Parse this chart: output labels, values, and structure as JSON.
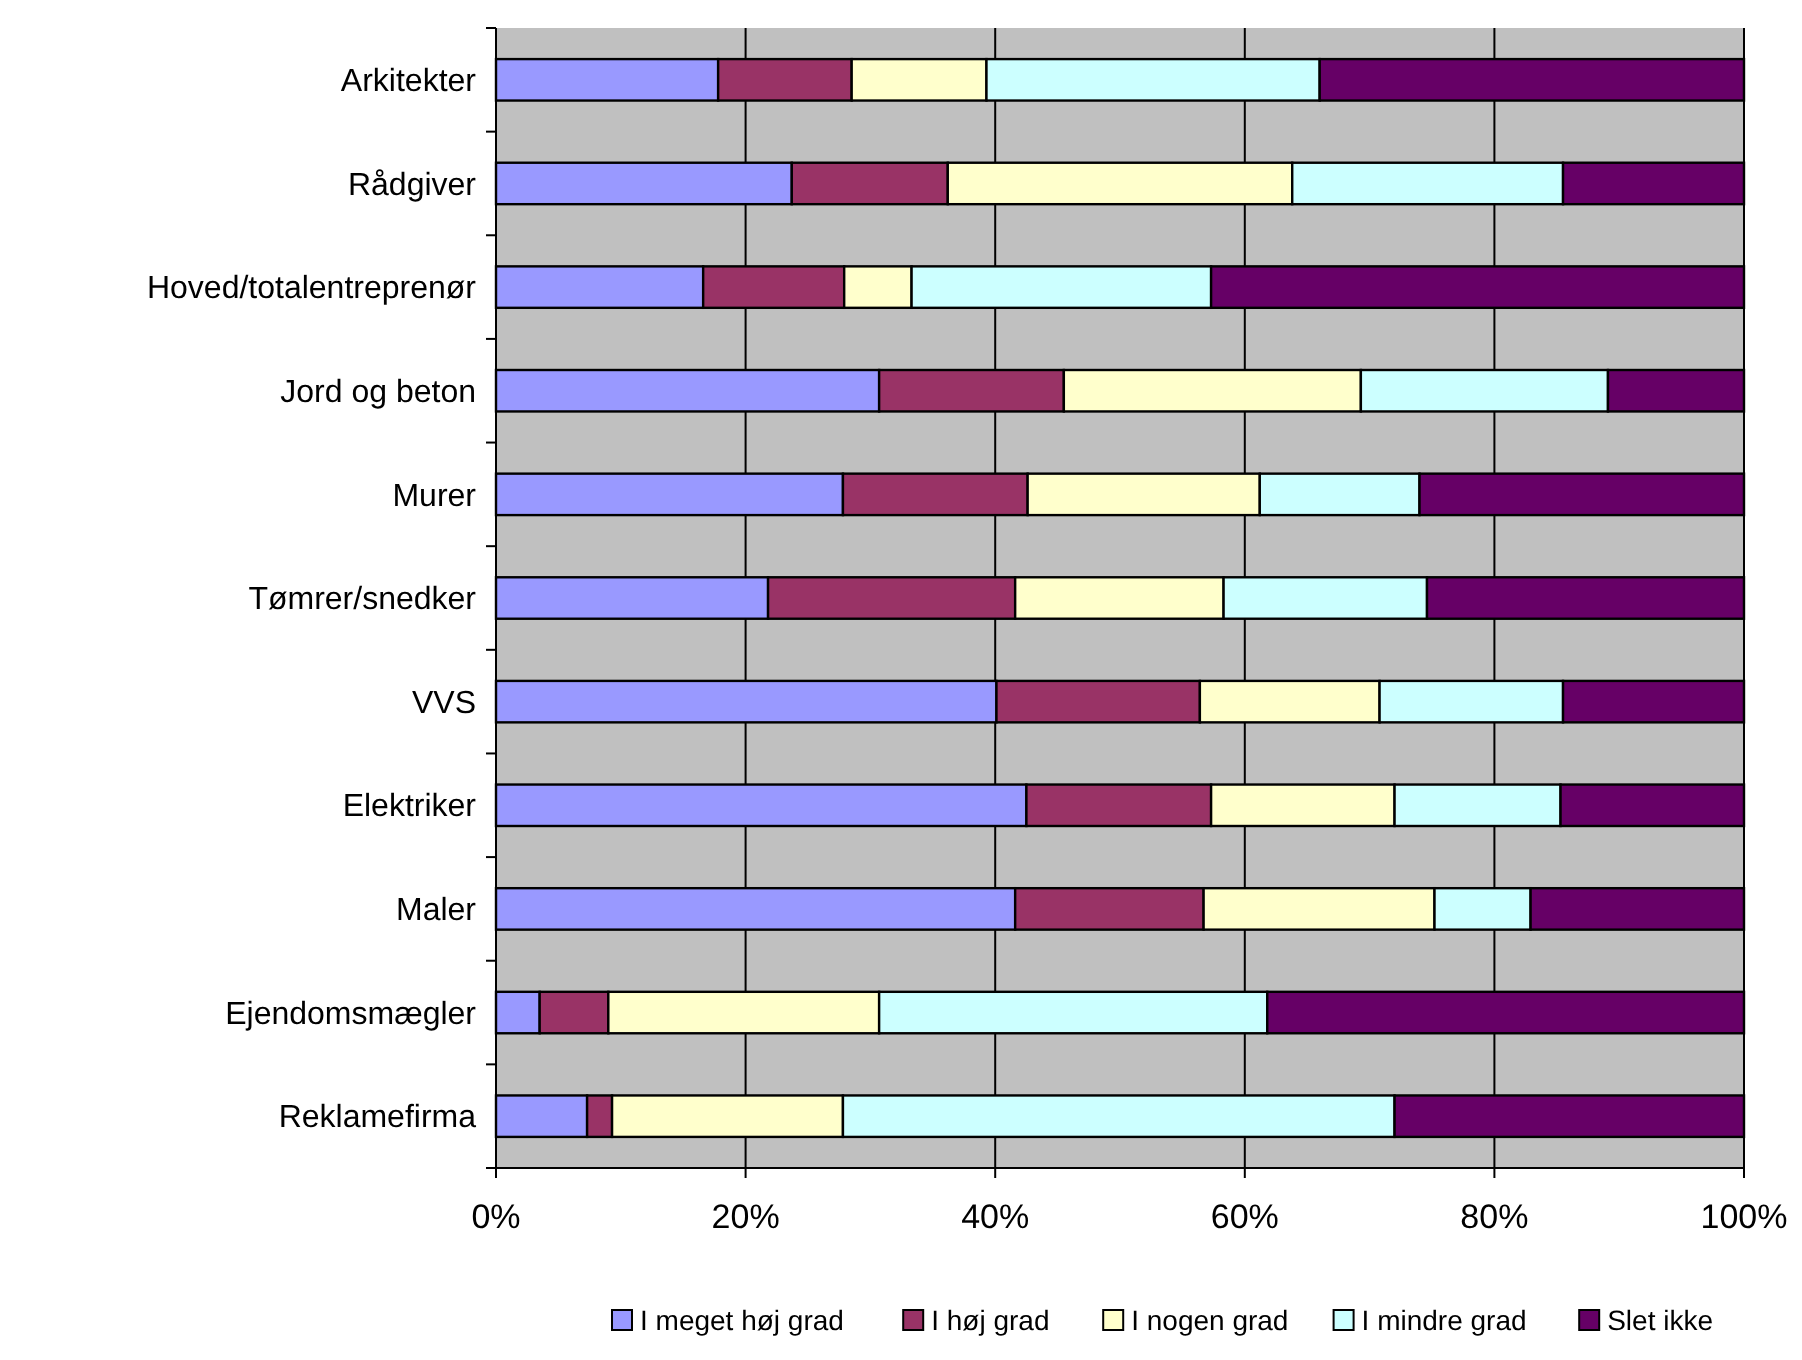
{
  "chart_data": {
    "type": "bar",
    "orientation": "horizontal",
    "stacked": true,
    "categories": [
      "Arkitekter",
      "Rådgiver",
      "Hoved/totalentreprenør",
      "Jord og beton",
      "Murer",
      "Tømrer/snedker",
      "VVS",
      "Elektriker",
      "Maler",
      "Ejendomsmægler",
      "Reklamefirma"
    ],
    "series": [
      {
        "name": "I meget høj grad",
        "color": "#9999ff",
        "values": [
          17.8,
          23.7,
          16.6,
          30.7,
          27.8,
          21.8,
          40.1,
          42.5,
          41.6,
          3.5,
          7.3
        ]
      },
      {
        "name": "I høj grad",
        "color": "#993366",
        "values": [
          10.7,
          12.5,
          11.3,
          14.8,
          14.8,
          19.8,
          16.3,
          14.8,
          15.1,
          5.5,
          2.0
        ]
      },
      {
        "name": "I nogen grad",
        "color": "#ffffcc",
        "values": [
          10.8,
          27.6,
          5.4,
          23.8,
          18.6,
          16.7,
          14.4,
          14.7,
          18.5,
          21.7,
          18.5
        ]
      },
      {
        "name": "I mindre grad",
        "color": "#ccffff",
        "values": [
          26.7,
          21.7,
          24.0,
          19.8,
          12.8,
          16.3,
          14.7,
          13.3,
          7.7,
          31.1,
          44.2
        ]
      },
      {
        "name": "Slet ikke",
        "color": "#660066",
        "values": [
          34.0,
          14.5,
          42.7,
          10.9,
          26.0,
          25.4,
          14.5,
          14.7,
          17.1,
          38.2,
          28.0
        ]
      }
    ],
    "xlim": [
      0,
      100
    ],
    "xticks": [
      {
        "value": 0,
        "label": "0%"
      },
      {
        "value": 20,
        "label": "20%"
      },
      {
        "value": 40,
        "label": "40%"
      },
      {
        "value": 60,
        "label": "60%"
      },
      {
        "value": 80,
        "label": "80%"
      },
      {
        "value": 100,
        "label": "100%"
      }
    ],
    "grid": "x",
    "legend": "bottom"
  }
}
